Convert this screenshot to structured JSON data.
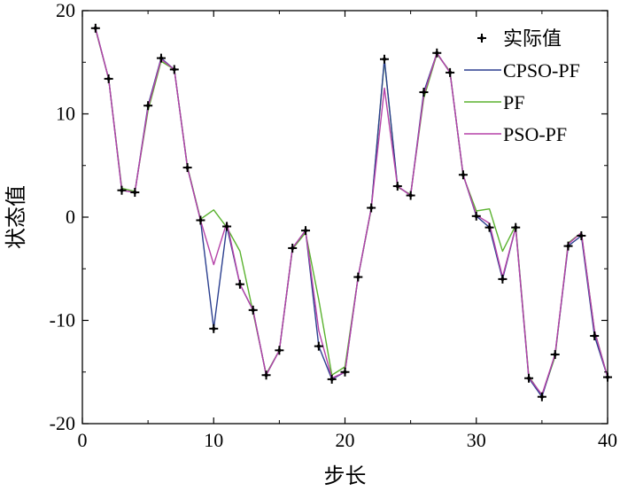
{
  "chart_data": {
    "type": "line",
    "xlabel": "步长",
    "ylabel": "状态值",
    "xlim": [
      0,
      40
    ],
    "ylim": [
      -20,
      20
    ],
    "xticks": [
      0,
      10,
      20,
      30,
      40
    ],
    "yticks": [
      -20,
      -10,
      0,
      10,
      20
    ],
    "grid": false,
    "legend_position": "top-right",
    "x": [
      1,
      2,
      3,
      4,
      5,
      6,
      7,
      8,
      9,
      10,
      11,
      12,
      13,
      14,
      15,
      16,
      17,
      18,
      19,
      20,
      21,
      22,
      23,
      24,
      25,
      26,
      27,
      28,
      29,
      30,
      31,
      32,
      33,
      34,
      35,
      36,
      37,
      38,
      39,
      40
    ],
    "series": [
      {
        "name": "实际值",
        "style": "marker",
        "color": "#000000",
        "values": [
          18.3,
          13.4,
          2.6,
          2.4,
          10.8,
          15.4,
          14.3,
          4.8,
          -0.3,
          -10.8,
          -0.9,
          -6.5,
          -9.0,
          -15.3,
          -12.9,
          -3.0,
          -1.3,
          -12.5,
          -15.7,
          -15.0,
          -5.8,
          0.9,
          15.3,
          3.0,
          2.1,
          12.1,
          15.9,
          14.0,
          4.1,
          0.1,
          -1.0,
          -6.0,
          -1.0,
          -15.6,
          -17.4,
          -13.3,
          -2.8,
          -1.8,
          -11.5,
          -15.5
        ]
      },
      {
        "name": "CPSO-PF",
        "style": "line",
        "color": "#2b3f8f",
        "values": [
          18.3,
          13.4,
          2.6,
          2.4,
          10.8,
          15.4,
          14.3,
          4.8,
          -0.3,
          -10.8,
          -0.9,
          -6.5,
          -9.0,
          -15.3,
          -12.9,
          -3.0,
          -1.3,
          -12.5,
          -15.7,
          -15.0,
          -5.8,
          0.9,
          15.3,
          3.0,
          2.1,
          12.1,
          15.9,
          14.0,
          4.1,
          0.1,
          -1.0,
          -6.0,
          -1.0,
          -15.6,
          -17.4,
          -13.3,
          -2.8,
          -1.8,
          -11.5,
          -15.5
        ]
      },
      {
        "name": "PF",
        "style": "line",
        "color": "#5ab22f",
        "values": [
          18.2,
          13.4,
          2.8,
          2.5,
          10.3,
          15.1,
          14.3,
          4.9,
          -0.2,
          0.7,
          -1.0,
          -3.3,
          -9.2,
          -15.2,
          -12.9,
          -3.1,
          -1.5,
          -8.0,
          -15.3,
          -14.5,
          -5.8,
          0.8,
          15.2,
          2.9,
          2.2,
          11.5,
          15.8,
          14.1,
          4.0,
          0.6,
          0.8,
          -3.3,
          -0.8,
          -15.4,
          -17.3,
          -13.5,
          -2.5,
          -1.5,
          -11.0,
          -15.5
        ]
      },
      {
        "name": "PSO-PF",
        "style": "line",
        "color": "#b542a8",
        "values": [
          18.3,
          13.4,
          2.6,
          2.4,
          10.6,
          15.3,
          14.3,
          4.8,
          -0.3,
          -4.6,
          -0.5,
          -6.5,
          -9.0,
          -15.3,
          -12.9,
          -3.0,
          -1.3,
          -11.0,
          -15.6,
          -15.0,
          -5.8,
          0.9,
          12.5,
          3.0,
          2.1,
          11.8,
          15.9,
          14.0,
          4.1,
          0.2,
          -0.6,
          -5.8,
          -1.0,
          -15.5,
          -17.2,
          -13.3,
          -2.6,
          -1.5,
          -11.0,
          -15.5
        ]
      }
    ]
  },
  "legend": {
    "items": [
      {
        "label": "实际值",
        "color": "#000000",
        "kind": "marker"
      },
      {
        "label": "CPSO-PF",
        "color": "#2b3f8f",
        "kind": "line"
      },
      {
        "label": "PF",
        "color": "#5ab22f",
        "kind": "line"
      },
      {
        "label": "PSO-PF",
        "color": "#b542a8",
        "kind": "line"
      }
    ]
  }
}
